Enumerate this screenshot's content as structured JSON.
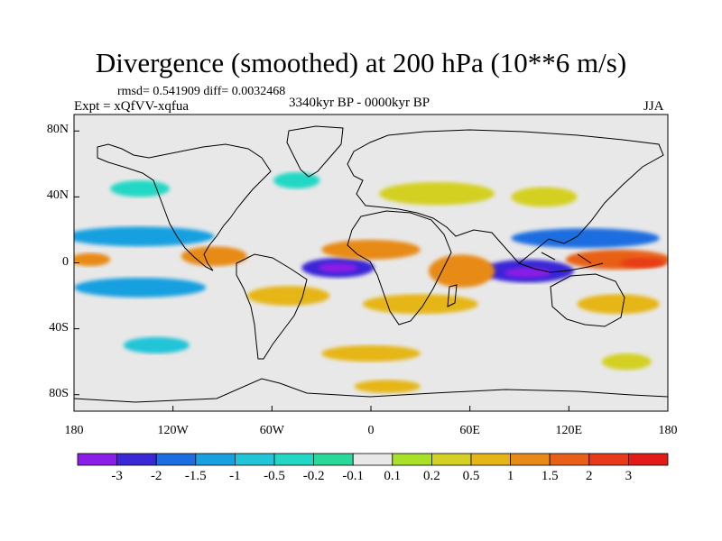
{
  "title": "Divergence (smoothed) at 200 hPa (10**6 m/s)",
  "stats": "rmsd= 0.541909 diff= 0.0032468",
  "experiment": "Expt = xQfVV-xqfua",
  "period": "3340kyr BP - 0000kyr BP",
  "season": "JJA",
  "map": {
    "lon_range": [
      -180,
      180
    ],
    "lat_range": [
      -90,
      90
    ],
    "y_ticks": [
      "80N",
      "40N",
      "0",
      "40S",
      "80S"
    ],
    "x_ticks": [
      "180",
      "120W",
      "60W",
      "0",
      "60E",
      "120E",
      "180"
    ],
    "background_color": "#e8e8e8",
    "regions": [
      {
        "lon": -20,
        "lat": -3,
        "rx": 22,
        "ry": 6,
        "level": -2
      },
      {
        "lon": -20,
        "lat": -3,
        "rx": 12,
        "ry": 3,
        "level": -3
      },
      {
        "lon": 95,
        "lat": -5,
        "rx": 28,
        "ry": 7,
        "level": -2
      },
      {
        "lon": 95,
        "lat": -6,
        "rx": 14,
        "ry": 3,
        "level": -3
      },
      {
        "lon": 0,
        "lat": 8,
        "rx": 30,
        "ry": 6,
        "level": 1
      },
      {
        "lon": 55,
        "lat": -5,
        "rx": 20,
        "ry": 10,
        "level": 1
      },
      {
        "lon": 150,
        "lat": 2,
        "rx": 32,
        "ry": 6,
        "level": 1.5
      },
      {
        "lon": 165,
        "lat": 0,
        "rx": 14,
        "ry": 3,
        "level": 2
      },
      {
        "lon": -170,
        "lat": 2,
        "rx": 12,
        "ry": 4,
        "level": 1
      },
      {
        "lon": 130,
        "lat": 15,
        "rx": 45,
        "ry": 6,
        "level": -1.5
      },
      {
        "lon": -140,
        "lat": 16,
        "rx": 45,
        "ry": 6,
        "level": -1
      },
      {
        "lon": -140,
        "lat": -15,
        "rx": 40,
        "ry": 6,
        "level": -1
      },
      {
        "lon": -95,
        "lat": 4,
        "rx": 20,
        "ry": 6,
        "level": 1
      },
      {
        "lon": -50,
        "lat": -20,
        "rx": 25,
        "ry": 6,
        "level": 0.5
      },
      {
        "lon": 30,
        "lat": -25,
        "rx": 35,
        "ry": 6,
        "level": 0.5
      },
      {
        "lon": 150,
        "lat": -25,
        "rx": 25,
        "ry": 6,
        "level": 0.5
      },
      {
        "lon": 40,
        "lat": 42,
        "rx": 35,
        "ry": 7,
        "level": 0.2
      },
      {
        "lon": -140,
        "lat": 45,
        "rx": 18,
        "ry": 5,
        "level": -0.2
      },
      {
        "lon": -45,
        "lat": 50,
        "rx": 14,
        "ry": 5,
        "level": -0.2
      },
      {
        "lon": 105,
        "lat": 40,
        "rx": 20,
        "ry": 6,
        "level": 0.2
      },
      {
        "lon": 0,
        "lat": -55,
        "rx": 30,
        "ry": 5,
        "level": 0.5
      },
      {
        "lon": -130,
        "lat": -50,
        "rx": 20,
        "ry": 5,
        "level": -0.5
      },
      {
        "lon": 155,
        "lat": -60,
        "rx": 15,
        "ry": 5,
        "level": 0.2
      },
      {
        "lon": 10,
        "lat": -75,
        "rx": 20,
        "ry": 4,
        "level": 0.5
      }
    ]
  },
  "colorbar": {
    "labels": [
      "-3",
      "-2",
      "-1.5",
      "-1",
      "-0.5",
      "-0.2",
      "-0.1",
      "0.1",
      "0.2",
      "0.5",
      "1",
      "1.5",
      "2",
      "3"
    ],
    "colors": [
      "#8a1ee6",
      "#3a28d6",
      "#1c6ee0",
      "#19a0e0",
      "#22c4d8",
      "#22d8c4",
      "#2ad89a",
      "#e8e8e8",
      "#a8e02a",
      "#d4d024",
      "#e6b618",
      "#e88a18",
      "#e86018",
      "#e83a18",
      "#e21a18"
    ]
  }
}
